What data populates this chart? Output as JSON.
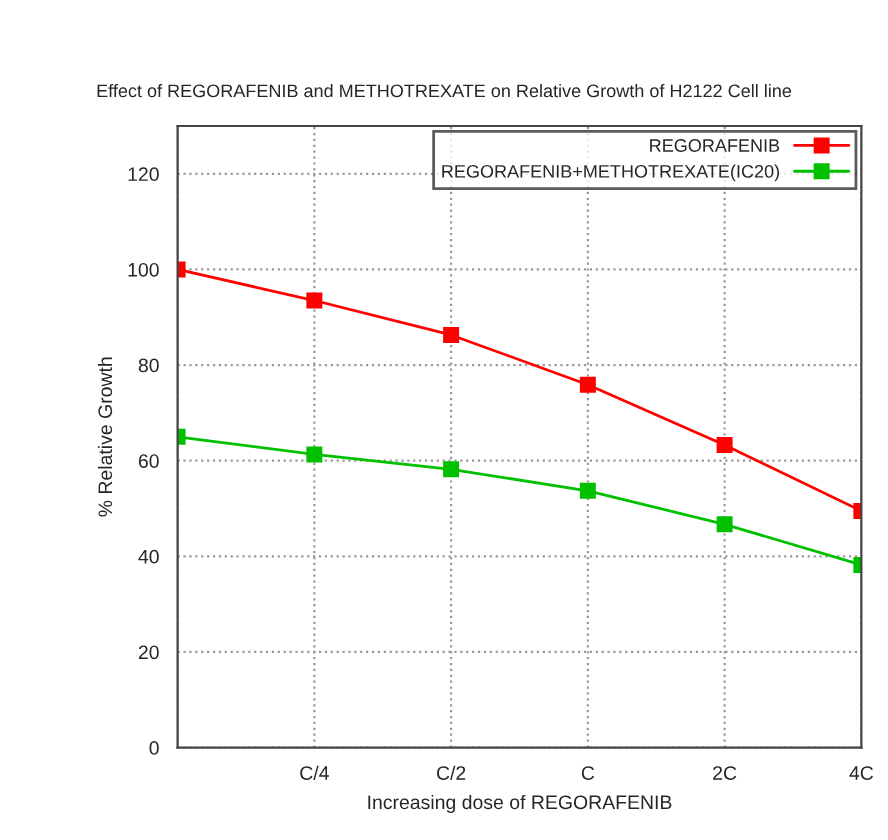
{
  "chart_data": {
    "type": "line",
    "title": "Effect of REGORAFENIB and METHOTREXATE on Relative Growth of H2122 Cell line",
    "xlabel": "Increasing dose of REGORAFENIB",
    "ylabel": "% Relative Growth",
    "categories": [
      null,
      "C/4",
      "C/2",
      "C",
      "2C",
      "4C"
    ],
    "series": [
      {
        "name": "REGORAFENIB",
        "color": "#ff0000",
        "values": [
          100,
          93.5,
          86.3,
          75.9,
          63.3,
          49.5
        ]
      },
      {
        "name": "REGORAFENIB+METHOTREXATE(IC20)",
        "color": "#00c000",
        "values": [
          65,
          61.3,
          58.2,
          53.7,
          46.7,
          38.2
        ]
      }
    ],
    "ylim": [
      0,
      130
    ],
    "yticks": [
      0,
      20,
      40,
      60,
      80,
      100,
      120
    ],
    "grid": true,
    "legend": "top right",
    "marker": "square",
    "line_style": "solid"
  }
}
